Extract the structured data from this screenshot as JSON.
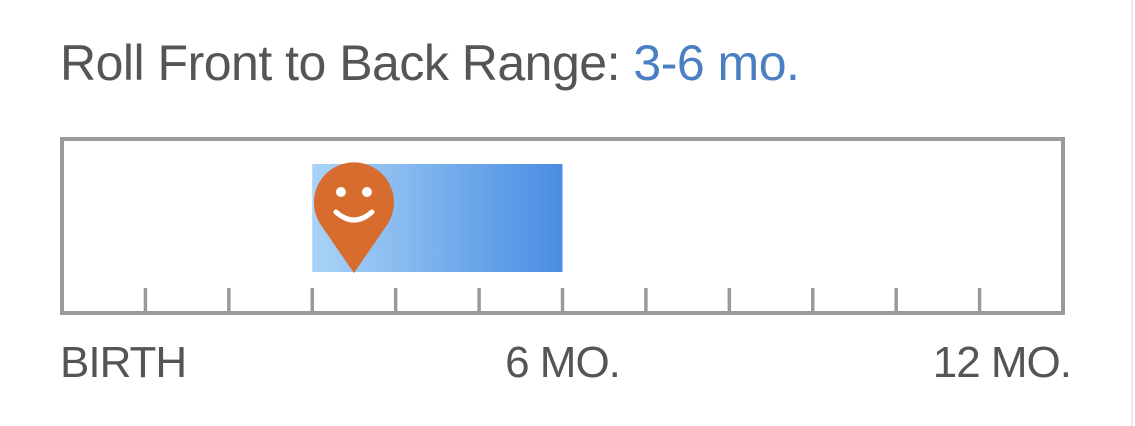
{
  "title": {
    "text": "Roll Front to Back Range: ",
    "range": "3-6 mo."
  },
  "colors": {
    "text": "#555555",
    "accent": "#4a7fc1",
    "frame": "#9a9a9a",
    "band_start": "#a9d3f7",
    "band_end": "#4a8de3",
    "marker": "#d86b2e"
  },
  "chart_data": {
    "type": "range-bar",
    "xlim": [
      0,
      12
    ],
    "tick_step": 1,
    "range": [
      3,
      6
    ],
    "marker_value": 3.5,
    "marker_icon": "smiley-pin-icon",
    "tick_labels": [
      {
        "value": 0,
        "label": "BIRTH"
      },
      {
        "value": 6,
        "label": "6 MO."
      },
      {
        "value": 12,
        "label": "12 MO."
      }
    ]
  }
}
